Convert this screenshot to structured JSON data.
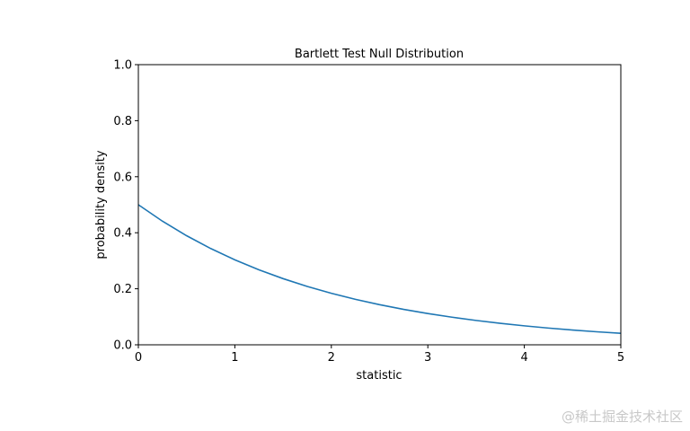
{
  "chart_data": {
    "type": "line",
    "title": "Bartlett Test Null Distribution",
    "xlabel": "statistic",
    "ylabel": "probability density",
    "xlim": [
      0,
      5
    ],
    "ylim": [
      0,
      1
    ],
    "xticks": [
      "0",
      "1",
      "2",
      "3",
      "4",
      "5"
    ],
    "yticks": [
      "0.0",
      "0.2",
      "0.4",
      "0.6",
      "0.8",
      "1.0"
    ],
    "grid": false,
    "color": "#1f77b4",
    "x": [
      0,
      0.25,
      0.5,
      0.75,
      1,
      1.25,
      1.5,
      1.75,
      2,
      2.25,
      2.5,
      2.75,
      3,
      3.25,
      3.5,
      3.75,
      4,
      4.25,
      4.5,
      4.75,
      5
    ],
    "y": [
      0.5,
      0.4412,
      0.3894,
      0.3437,
      0.3033,
      0.2676,
      0.2362,
      0.2084,
      0.1839,
      0.1623,
      0.1433,
      0.1264,
      0.1116,
      0.0985,
      0.0869,
      0.0767,
      0.0677,
      0.0597,
      0.0527,
      0.0465,
      0.041
    ]
  },
  "watermark": "@稀土掘金技术社区"
}
